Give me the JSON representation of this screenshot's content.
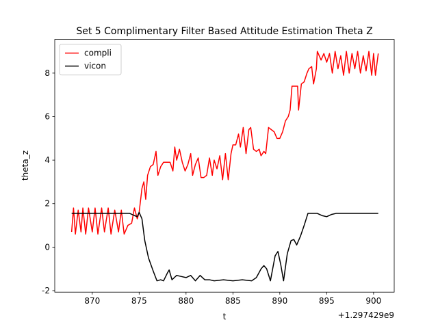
{
  "chart_data": {
    "type": "line",
    "title": "Set 5 Complimentary Filter Based Attitude Estimation Theta Z",
    "xlabel": "t",
    "ylabel": "theta_z",
    "x_offset_label": "+1.297429e9",
    "xlim": [
      866.0,
      902.2
    ],
    "ylim": [
      -2.07,
      9.55
    ],
    "xticks": [
      870,
      875,
      880,
      885,
      890,
      895,
      900
    ],
    "yticks": [
      -2,
      0,
      2,
      4,
      6,
      8
    ],
    "grid": false,
    "legend": "upper left",
    "series": [
      {
        "name": "compli",
        "color": "#ff0000",
        "x": [
          867.8,
          868,
          868.2,
          868.5,
          868.8,
          869,
          869.3,
          869.6,
          870,
          870.3,
          870.6,
          871,
          871.3,
          871.7,
          872,
          872.4,
          872.8,
          873.1,
          873.4,
          873.8,
          874.2,
          874.5,
          874.8,
          875,
          875.3,
          875.5,
          875.7,
          875.9,
          876.2,
          876.5,
          876.8,
          877,
          877.3,
          877.6,
          878,
          878.3,
          878.6,
          878.8,
          879,
          879.3,
          879.6,
          879.9,
          880.2,
          880.5,
          880.7,
          881,
          881.3,
          881.6,
          881.9,
          882.2,
          882.5,
          882.8,
          883,
          883.3,
          883.6,
          883.9,
          884.2,
          884.5,
          884.8,
          885,
          885.3,
          885.6,
          885.8,
          886.1,
          886.4,
          886.7,
          886.9,
          887.2,
          887.5,
          887.8,
          888,
          888.3,
          888.5,
          888.8,
          889.1,
          889.4,
          889.7,
          890,
          890.3,
          890.6,
          890.9,
          891.1,
          891.3,
          891.6,
          891.9,
          892,
          892.3,
          892.6,
          892.9,
          893.1,
          893.4,
          893.6,
          893.9,
          894,
          894.4,
          894.7,
          895,
          895.3,
          895.6,
          895.9,
          896.2,
          896.5,
          896.8,
          897.1,
          897.4,
          897.7,
          898,
          898.3,
          898.6,
          898.9,
          899.2,
          899.5,
          899.8,
          900,
          900.2,
          900.5
        ],
        "values": [
          0.7,
          1.8,
          0.6,
          1.7,
          0.7,
          1.8,
          0.6,
          1.8,
          0.7,
          1.8,
          0.6,
          1.8,
          0.7,
          1.8,
          0.6,
          1.7,
          0.7,
          1.7,
          0.6,
          1.0,
          1.1,
          1.8,
          1.3,
          1.6,
          2.7,
          3.0,
          2.2,
          3.3,
          3.7,
          3.8,
          4.4,
          3.3,
          3.7,
          3.9,
          3.9,
          3.9,
          3.5,
          4.6,
          4.0,
          4.5,
          3.9,
          3.5,
          3.8,
          4.3,
          3.3,
          3.8,
          4.1,
          3.2,
          3.2,
          3.3,
          4.1,
          3.3,
          4.0,
          3.6,
          4.2,
          3.1,
          4.3,
          3.1,
          4.3,
          4.7,
          4.7,
          5.2,
          4.6,
          5.5,
          4.3,
          5.4,
          5.5,
          4.5,
          4.4,
          4.5,
          4.2,
          4.4,
          4.3,
          5.5,
          5.4,
          5.3,
          5.0,
          5.0,
          5.3,
          5.8,
          6.0,
          6.3,
          7.4,
          7.4,
          7.4,
          6.3,
          7.5,
          7.6,
          8.0,
          8.2,
          8.3,
          7.5,
          8.2,
          9.0,
          8.6,
          8.9,
          8.5,
          8.9,
          8.0,
          9.0,
          8.2,
          8.8,
          7.9,
          9.0,
          8.0,
          8.9,
          8.2,
          9.0,
          8.0,
          8.8,
          8.1,
          9.0,
          7.9,
          8.9,
          7.9,
          8.9
        ]
      },
      {
        "name": "vicon",
        "color": "#000000",
        "x": [
          867.8,
          874,
          874.5,
          874.8,
          875,
          875.3,
          875.6,
          876,
          876.5,
          876.9,
          877.3,
          877.6,
          878,
          878.2,
          878.5,
          879,
          879.5,
          880,
          880.5,
          881,
          881.5,
          882,
          882.5,
          883,
          884,
          885,
          886,
          887,
          887.5,
          888,
          888.3,
          888.6,
          889,
          889.5,
          889.8,
          890.1,
          890.4,
          890.8,
          891.2,
          891.5,
          891.8,
          892.2,
          892.6,
          893,
          893.5,
          894,
          894.5,
          895,
          895.5,
          896,
          900.5
        ],
        "values": [
          1.55,
          1.55,
          1.45,
          1.4,
          1.6,
          1.3,
          0.3,
          -0.5,
          -1.1,
          -1.55,
          -1.5,
          -1.55,
          -1.2,
          -1.05,
          -1.5,
          -1.3,
          -1.35,
          -1.4,
          -1.3,
          -1.55,
          -1.3,
          -1.5,
          -1.5,
          -1.55,
          -1.5,
          -1.55,
          -1.5,
          -1.55,
          -1.4,
          -1.0,
          -0.85,
          -1.0,
          -1.55,
          -0.4,
          -0.2,
          -0.8,
          -1.55,
          -0.3,
          0.3,
          0.35,
          0.1,
          0.5,
          1.0,
          1.55,
          1.55,
          1.55,
          1.45,
          1.4,
          1.5,
          1.55,
          1.55
        ]
      }
    ]
  }
}
